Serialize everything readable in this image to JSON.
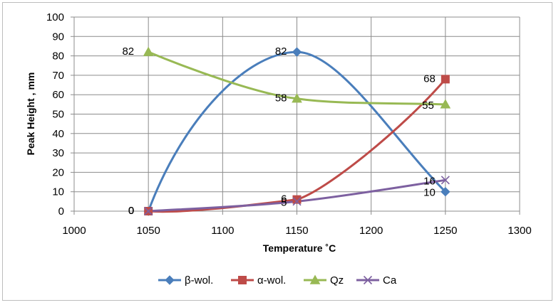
{
  "chart_data": {
    "type": "line",
    "title": "",
    "xlabel": "Temperature ˚C",
    "ylabel": "Peak Height , mm",
    "xlim": [
      1000,
      1300
    ],
    "ylim": [
      0,
      100
    ],
    "x_ticks": [
      "1000",
      "1050",
      "1100",
      "1150",
      "1200",
      "1250",
      "1300"
    ],
    "y_ticks": [
      "0",
      "10",
      "20",
      "30",
      "40",
      "50",
      "60",
      "70",
      "80",
      "90",
      "100"
    ],
    "grid": true,
    "smoothed": true,
    "legend_position": "bottom",
    "series": [
      {
        "name": "β-wol.",
        "color": "#4a7ebb",
        "marker": "diamond",
        "x": [
          1050,
          1150,
          1250
        ],
        "y": [
          0,
          82,
          10
        ],
        "labels": [
          "0",
          "82",
          "10"
        ]
      },
      {
        "name": "α-wol.",
        "color": "#be4b48",
        "marker": "square",
        "x": [
          1050,
          1150,
          1250
        ],
        "y": [
          0,
          6,
          68
        ],
        "labels": [
          "0",
          "6",
          "68"
        ]
      },
      {
        "name": "Qz",
        "color": "#98b954",
        "marker": "triangle",
        "x": [
          1050,
          1150,
          1250
        ],
        "y": [
          82,
          58,
          55
        ],
        "labels": [
          "82",
          "58",
          "55"
        ]
      },
      {
        "name": "Ca",
        "color": "#7d60a0",
        "marker": "x",
        "x": [
          1050,
          1150,
          1250
        ],
        "y": [
          0,
          5,
          16
        ],
        "labels": [
          "0",
          "5",
          "16"
        ]
      }
    ]
  }
}
